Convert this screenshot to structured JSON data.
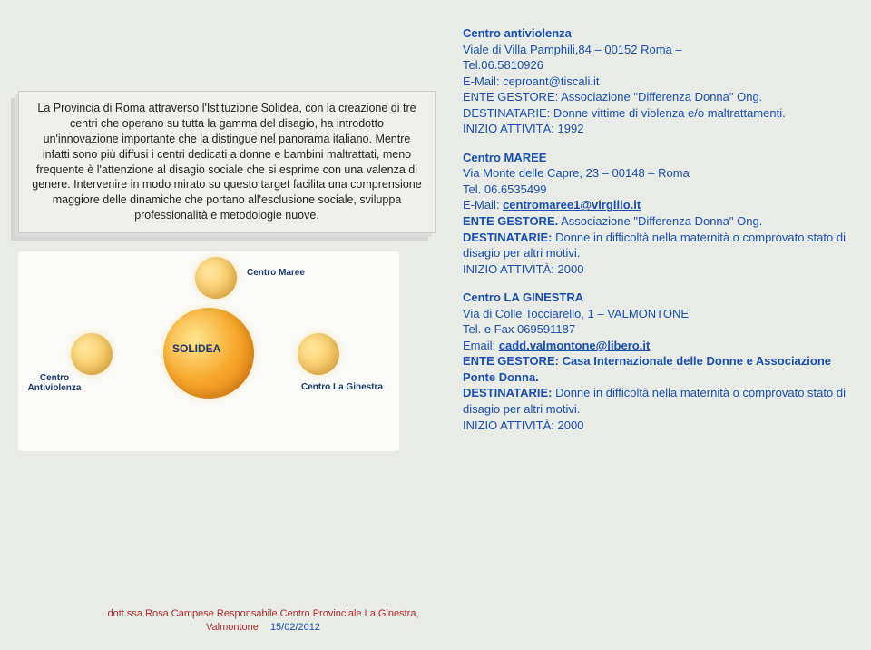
{
  "intro_text": "La Provincia di Roma attraverso l'Istituzione Solidea, con la creazione di tre centri che operano su tutta la gamma del disagio, ha introdotto un'innovazione importante che la distingue nel panorama italiano. Mentre infatti sono più diffusi i centri dedicati a donne e bambini maltrattati, meno frequente è l'attenzione al disagio sociale che si esprime con una valenza di genere. Intervenire in modo mirato su questo target facilita una comprensione maggiore delle dinamiche che portano all'esclusione sociale, sviluppa professionalità e metodologie nuove.",
  "diagram": {
    "center_label": "SOLIDEA",
    "top_label": "Centro Maree",
    "left_label": "Centro Antiviolenza",
    "right_label": "Centro La Ginestra",
    "center_color": "#e77a10",
    "satellite_color": "#f6b23a",
    "label_color": "#1b3a6b",
    "background": "#fafaf8"
  },
  "centres": [
    {
      "title": "Centro antiviolenza",
      "address": "Viale di Villa Pamphili,84 – 00152 Roma –",
      "phone_label": "Tel.",
      "phone": "06.5810926",
      "email_label": "E-Mail:",
      "email": "ceproant@tiscali.it",
      "ente_label": "ENTE GESTORE:",
      "ente": " Associazione \"Differenza Donna\" Ong.",
      "dest_label": "DESTINATARIE:",
      "dest": " Donne vittime di violenza e/o maltrattamenti.",
      "inizio_label": "INIZIO ATTIVITÀ:",
      "inizio": " 1992"
    },
    {
      "title": "Centro MAREE",
      "address": "Via Monte delle Capre, 23 – 00148 – Roma",
      "phone_label": "Tel.",
      "phone": " 06.6535499",
      "email_label": "E-Mail:",
      "email": "centromaree1@virgilio.it",
      "ente_label": "ENTE GESTORE.",
      "ente": " Associazione \"Differenza Donna\" Ong.",
      "dest_label": "DESTINATARIE:",
      "dest": " Donne in difficoltà nella maternità o comprovato stato di disagio per altri motivi.",
      "inizio_label": "INIZIO ATTIVITÀ:",
      "inizio": " 2000"
    },
    {
      "title": "Centro LA GINESTRA",
      "address": "Via di Colle Tocciarello, 1 – VALMONTONE",
      "phone_label": "Tel. e Fax",
      "phone": " 069591187",
      "email_label": "Email:",
      "email": "cadd.valmontone@libero.it",
      "ente_label": "ENTE GESTORE:",
      "ente": " Casa Internazionale delle Donne e Associazione  Ponte Donna.",
      "dest_label": "DESTINATARIE:",
      "dest": " Donne in difficoltà nella maternità o comprovato stato di disagio per altri motivi.",
      "inizio_label": "INIZIO ATTIVITÀ:",
      "inizio": " 2000"
    }
  ],
  "footer": {
    "author": "dott.ssa Rosa Campese Responsabile Centro Provinciale La Ginestra, Valmontone",
    "date": "15/02/2012"
  },
  "colors": {
    "blue": "#1a4fb0",
    "red": "#b12a2a",
    "bg": "#e8ebe6"
  }
}
